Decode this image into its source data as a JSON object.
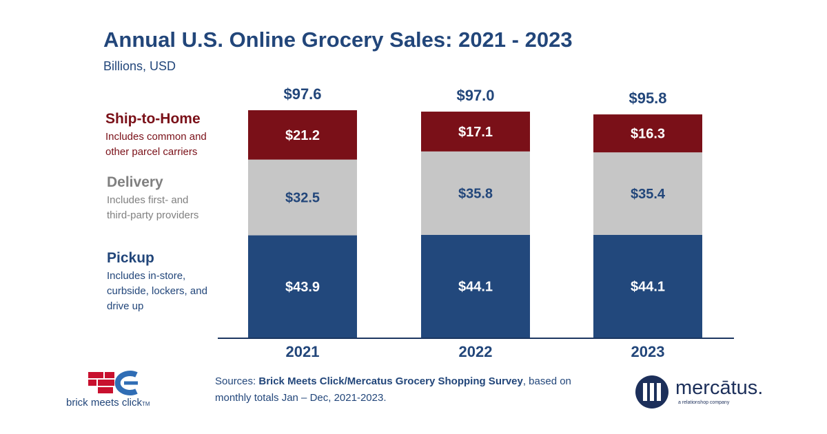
{
  "header": {
    "title": "Annual U.S. Online Grocery Sales: 2021 - 2023",
    "subtitle": "Billions, USD"
  },
  "legend": [
    {
      "name": "Ship-to-Home",
      "desc_lines": [
        "Includes common and",
        "other parcel carriers"
      ],
      "color": "#7a1018"
    },
    {
      "name": "Delivery",
      "desc_lines": [
        "Includes first- and",
        "third-party providers"
      ],
      "color": "#808080"
    },
    {
      "name": "Pickup",
      "desc_lines": [
        "Includes in-store,",
        "curbside, lockers, and",
        "drive up"
      ],
      "color": "#22467a"
    }
  ],
  "chart_data": {
    "type": "bar",
    "stacked": true,
    "title": "Annual U.S. Online Grocery Sales: 2021 - 2023",
    "subtitle": "Billions, USD",
    "categories": [
      "2021",
      "2022",
      "2023"
    ],
    "series": [
      {
        "name": "Pickup",
        "values": [
          43.9,
          44.1,
          44.1
        ],
        "labels": [
          "$43.9",
          "$44.1",
          "$44.1"
        ],
        "color": "#22487c"
      },
      {
        "name": "Delivery",
        "values": [
          32.5,
          35.8,
          35.4
        ],
        "labels": [
          "$32.5",
          "$35.8",
          "$35.4"
        ],
        "color": "#c6c6c6"
      },
      {
        "name": "Ship-to-Home",
        "values": [
          21.2,
          17.1,
          16.3
        ],
        "labels": [
          "$21.2",
          "$17.1",
          "$16.3"
        ],
        "color": "#7a1018"
      }
    ],
    "totals": [
      97.6,
      97.0,
      95.8
    ],
    "total_labels": [
      "$97.6",
      "$97.0",
      "$95.8"
    ],
    "ylim": [
      0,
      97.6
    ],
    "grid": false,
    "label_color": "#22467a"
  },
  "footer": {
    "sources_prefix": "Sources: ",
    "sources_bold": "Brick Meets Click/Mercatus Grocery Shopping Survey",
    "sources_rest": ", based on monthly totals Jan – Dec, 2021-2023."
  },
  "logos": {
    "bmc_text": "brick meets click",
    "bmc_tm": "TM",
    "mercatus_name": "mercātus.",
    "mercatus_tagline": "a relationshop company"
  }
}
